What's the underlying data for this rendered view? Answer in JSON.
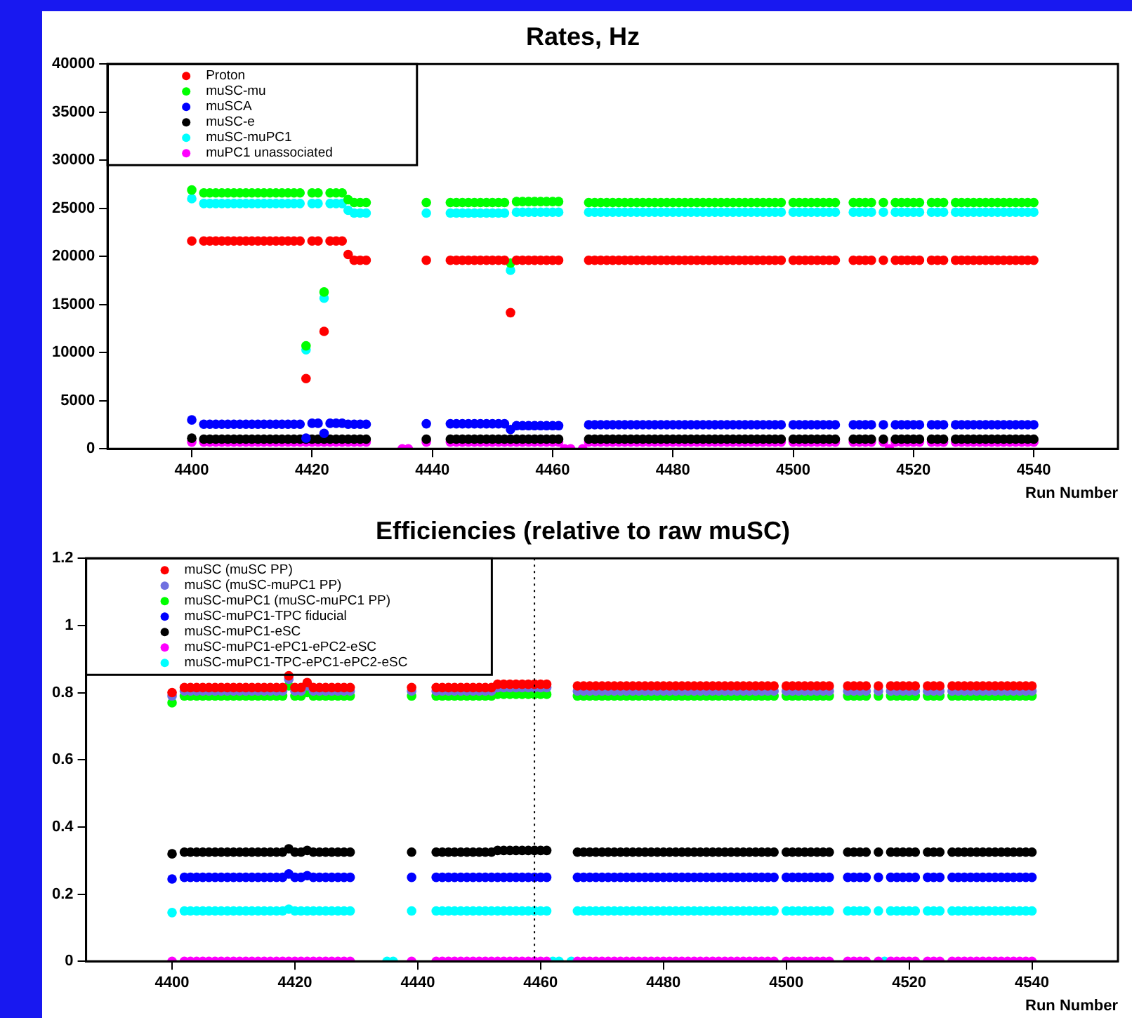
{
  "chart_data": [
    {
      "type": "scatter",
      "title": "Rates, Hz",
      "xlabel": "Run Number",
      "marker": "circle",
      "legend": "top left",
      "x": [
        4400,
        4402,
        4403,
        4404,
        4405,
        4406,
        4407,
        4408,
        4409,
        4410,
        4411,
        4412,
        4413,
        4414,
        4415,
        4416,
        4417,
        4418,
        4419,
        4420,
        4421,
        4422,
        4423,
        4424,
        4425,
        4426,
        4427,
        4428,
        4429,
        4435,
        4436,
        4439,
        4443,
        4444,
        4445,
        4446,
        4447,
        4448,
        4449,
        4450,
        4451,
        4452,
        4453,
        4454,
        4455,
        4456,
        4457,
        4458,
        4459,
        4460,
        4461,
        4462,
        4463,
        4465,
        4466,
        4467,
        4468,
        4469,
        4470,
        4471,
        4472,
        4473,
        4474,
        4475,
        4476,
        4477,
        4478,
        4479,
        4480,
        4481,
        4482,
        4483,
        4484,
        4485,
        4486,
        4487,
        4488,
        4489,
        4490,
        4491,
        4492,
        4493,
        4494,
        4495,
        4496,
        4497,
        4498,
        4500,
        4501,
        4502,
        4503,
        4504,
        4505,
        4506,
        4507,
        4510,
        4511,
        4512,
        4513,
        4515,
        4516,
        4517,
        4518,
        4519,
        4520,
        4521,
        4523,
        4524,
        4525,
        4527,
        4528,
        4529,
        4530,
        4531,
        4532,
        4533,
        4534,
        4535,
        4536,
        4537,
        4538,
        4539,
        4540
      ],
      "xlim": [
        4386,
        4554
      ],
      "xticks": [
        4400,
        4420,
        4440,
        4460,
        4480,
        4500,
        4520,
        4540
      ],
      "ylim": [
        0,
        40000
      ],
      "yticks": [
        0,
        5000,
        10000,
        15000,
        20000,
        25000,
        30000,
        35000,
        40000
      ],
      "series": [
        {
          "name": "Proton",
          "color": "#ff0000",
          "values": [
            21600,
            21600,
            21600,
            21600,
            21600,
            21600,
            21600,
            21600,
            21600,
            21600,
            21600,
            21600,
            21600,
            21600,
            21600,
            21600,
            21600,
            21600,
            7300,
            21600,
            21600,
            12200,
            21600,
            21600,
            21600,
            20200,
            19600,
            19600,
            19600,
            null,
            null,
            19600,
            19600,
            19600,
            19600,
            19600,
            19600,
            19600,
            19600,
            19600,
            19600,
            19600,
            14150,
            19600,
            19600,
            19600,
            19600,
            19600,
            19600,
            19600,
            19600,
            null,
            null,
            null,
            19600,
            19600,
            19600,
            19600,
            19600,
            19600,
            19600,
            19600,
            19600,
            19600,
            19600,
            19600,
            19600,
            19600,
            19600,
            19600,
            19600,
            19600,
            19600,
            19600,
            19600,
            19600,
            19600,
            19600,
            19600,
            19600,
            19600,
            19600,
            19600,
            19600,
            19600,
            19600,
            19600,
            19600,
            19600,
            19600,
            19600,
            19600,
            19600,
            19600,
            19600,
            19600,
            19600,
            19600,
            19600,
            19600,
            null,
            19600,
            19600,
            19600,
            19600,
            19600,
            19600,
            19600,
            19600,
            19600,
            19600,
            19600,
            19600,
            19600,
            19600,
            19600,
            19600,
            19600,
            19600,
            19600,
            19600,
            19600,
            19600
          ]
        },
        {
          "name": "muSC-mu",
          "color": "#00ff00",
          "values": [
            26900,
            26600,
            26600,
            26600,
            26600,
            26600,
            26600,
            26600,
            26600,
            26600,
            26600,
            26600,
            26600,
            26600,
            26600,
            26600,
            26600,
            26600,
            10700,
            26600,
            26600,
            16300,
            26600,
            26600,
            26600,
            25900,
            25600,
            25600,
            25600,
            null,
            null,
            25600,
            25600,
            25600,
            25600,
            25600,
            25600,
            25600,
            25600,
            25600,
            25600,
            25600,
            19300,
            25700,
            25700,
            25700,
            25700,
            25700,
            25700,
            25700,
            25700,
            null,
            null,
            null,
            25600,
            25600,
            25600,
            25600,
            25600,
            25600,
            25600,
            25600,
            25600,
            25600,
            25600,
            25600,
            25600,
            25600,
            25600,
            25600,
            25600,
            25600,
            25600,
            25600,
            25600,
            25600,
            25600,
            25600,
            25600,
            25600,
            25600,
            25600,
            25600,
            25600,
            25600,
            25600,
            25600,
            25600,
            25600,
            25600,
            25600,
            25600,
            25600,
            25600,
            25600,
            25600,
            25600,
            25600,
            25600,
            25600,
            null,
            25600,
            25600,
            25600,
            25600,
            25600,
            25600,
            25600,
            25600,
            25600,
            25600,
            25600,
            25600,
            25600,
            25600,
            25600,
            25600,
            25600,
            25600,
            25600,
            25600,
            25600,
            25600
          ]
        },
        {
          "name": "muSCA",
          "color": "#0000ff",
          "values": [
            3000,
            2550,
            2550,
            2550,
            2550,
            2550,
            2550,
            2550,
            2550,
            2550,
            2550,
            2550,
            2550,
            2550,
            2550,
            2550,
            2550,
            2550,
            1100,
            2650,
            2650,
            1600,
            2650,
            2650,
            2650,
            2550,
            2550,
            2550,
            2550,
            null,
            null,
            2600,
            2600,
            2600,
            2600,
            2600,
            2600,
            2600,
            2600,
            2600,
            2600,
            2600,
            2000,
            2400,
            2400,
            2400,
            2400,
            2400,
            2400,
            2400,
            2400,
            null,
            null,
            null,
            2500,
            2500,
            2500,
            2500,
            2500,
            2500,
            2500,
            2500,
            2500,
            2500,
            2500,
            2500,
            2500,
            2500,
            2500,
            2500,
            2500,
            2500,
            2500,
            2500,
            2500,
            2500,
            2500,
            2500,
            2500,
            2500,
            2500,
            2500,
            2500,
            2500,
            2500,
            2500,
            2500,
            2500,
            2500,
            2500,
            2500,
            2500,
            2500,
            2500,
            2500,
            2500,
            2500,
            2500,
            2500,
            2500,
            null,
            2500,
            2500,
            2500,
            2500,
            2500,
            2500,
            2500,
            2500,
            2500,
            2500,
            2500,
            2500,
            2500,
            2500,
            2500,
            2500,
            2500,
            2500,
            2500,
            2500,
            2500,
            2500
          ]
        },
        {
          "name": "muSC-e",
          "color": "#000000",
          "values": [
            1100,
            1000,
            1000,
            1000,
            1000,
            1000,
            1000,
            1000,
            1000,
            1000,
            1000,
            1000,
            1000,
            1000,
            1000,
            1000,
            1000,
            1000,
            1000,
            1000,
            1000,
            1000,
            1000,
            1000,
            1000,
            1000,
            1000,
            1000,
            1000,
            null,
            null,
            1000,
            1000,
            1000,
            1000,
            1000,
            1000,
            1000,
            1000,
            1000,
            1000,
            1000,
            1000,
            1000,
            1000,
            1000,
            1000,
            1000,
            1000,
            1000,
            1000,
            null,
            null,
            null,
            1000,
            1000,
            1000,
            1000,
            1000,
            1000,
            1000,
            1000,
            1000,
            1000,
            1000,
            1000,
            1000,
            1000,
            1000,
            1000,
            1000,
            1000,
            1000,
            1000,
            1000,
            1000,
            1000,
            1000,
            1000,
            1000,
            1000,
            1000,
            1000,
            1000,
            1000,
            1000,
            1000,
            1000,
            1000,
            1000,
            1000,
            1000,
            1000,
            1000,
            1000,
            1000,
            1000,
            1000,
            1000,
            1000,
            null,
            1000,
            1000,
            1000,
            1000,
            1000,
            1000,
            1000,
            1000,
            1000,
            1000,
            1000,
            1000,
            1000,
            1000,
            1000,
            1000,
            1000,
            1000,
            1000,
            1000,
            1000,
            1000
          ]
        },
        {
          "name": "muSC-muPC1",
          "color": "#00ffff",
          "values": [
            26000,
            25500,
            25500,
            25500,
            25500,
            25500,
            25500,
            25500,
            25500,
            25500,
            25500,
            25500,
            25500,
            25500,
            25500,
            25500,
            25500,
            25500,
            10300,
            25500,
            25500,
            15650,
            25500,
            25500,
            25500,
            24800,
            24500,
            24500,
            24500,
            null,
            null,
            24500,
            24500,
            24500,
            24500,
            24500,
            24500,
            24500,
            24500,
            24500,
            24500,
            24500,
            18550,
            24600,
            24600,
            24600,
            24600,
            24600,
            24600,
            24600,
            24600,
            null,
            null,
            null,
            24600,
            24600,
            24600,
            24600,
            24600,
            24600,
            24600,
            24600,
            24600,
            24600,
            24600,
            24600,
            24600,
            24600,
            24600,
            24600,
            24600,
            24600,
            24600,
            24600,
            24600,
            24600,
            24600,
            24600,
            24600,
            24600,
            24600,
            24600,
            24600,
            24600,
            24600,
            24600,
            24600,
            24600,
            24600,
            24600,
            24600,
            24600,
            24600,
            24600,
            24600,
            24600,
            24600,
            24600,
            24600,
            24600,
            null,
            24600,
            24600,
            24600,
            24600,
            24600,
            24600,
            24600,
            24600,
            24600,
            24600,
            24600,
            24600,
            24600,
            24600,
            24600,
            24600,
            24600,
            24600,
            24600,
            24600,
            24600,
            24600
          ]
        },
        {
          "name": "muPC1 unassociated",
          "color": "#ff00ff",
          "values": [
            700,
            700,
            700,
            700,
            700,
            700,
            700,
            700,
            700,
            700,
            700,
            700,
            700,
            700,
            700,
            700,
            700,
            700,
            700,
            700,
            700,
            700,
            700,
            700,
            700,
            700,
            700,
            700,
            700,
            0,
            0,
            700,
            700,
            700,
            700,
            700,
            700,
            700,
            700,
            700,
            700,
            700,
            700,
            700,
            700,
            700,
            700,
            700,
            700,
            700,
            700,
            0,
            0,
            0,
            700,
            700,
            700,
            700,
            700,
            700,
            700,
            700,
            700,
            700,
            700,
            700,
            700,
            700,
            700,
            700,
            700,
            700,
            700,
            700,
            700,
            700,
            700,
            700,
            700,
            700,
            700,
            700,
            700,
            700,
            700,
            700,
            700,
            700,
            700,
            700,
            700,
            700,
            700,
            700,
            700,
            700,
            700,
            700,
            700,
            700,
            0,
            700,
            700,
            700,
            700,
            700,
            700,
            700,
            700,
            700,
            700,
            700,
            700,
            700,
            700,
            700,
            700,
            700,
            700,
            700,
            700,
            700,
            700
          ]
        }
      ]
    },
    {
      "type": "scatter",
      "title": "Efficiencies (relative to raw muSC)",
      "xlabel": "Run Number",
      "marker": "circle",
      "legend": "top left",
      "x": [
        4400,
        4402,
        4403,
        4404,
        4405,
        4406,
        4407,
        4408,
        4409,
        4410,
        4411,
        4412,
        4413,
        4414,
        4415,
        4416,
        4417,
        4418,
        4419,
        4420,
        4421,
        4422,
        4423,
        4424,
        4425,
        4426,
        4427,
        4428,
        4429,
        4435,
        4436,
        4439,
        4443,
        4444,
        4445,
        4446,
        4447,
        4448,
        4449,
        4450,
        4451,
        4452,
        4453,
        4454,
        4455,
        4456,
        4457,
        4458,
        4459,
        4460,
        4461,
        4462,
        4463,
        4465,
        4466,
        4467,
        4468,
        4469,
        4470,
        4471,
        4472,
        4473,
        4474,
        4475,
        4476,
        4477,
        4478,
        4479,
        4480,
        4481,
        4482,
        4483,
        4484,
        4485,
        4486,
        4487,
        4488,
        4489,
        4490,
        4491,
        4492,
        4493,
        4494,
        4495,
        4496,
        4497,
        4498,
        4500,
        4501,
        4502,
        4503,
        4504,
        4505,
        4506,
        4507,
        4510,
        4511,
        4512,
        4513,
        4515,
        4516,
        4517,
        4518,
        4519,
        4520,
        4521,
        4523,
        4524,
        4525,
        4527,
        4528,
        4529,
        4530,
        4531,
        4532,
        4533,
        4534,
        4535,
        4536,
        4537,
        4538,
        4539,
        4540
      ],
      "xlim": [
        4386,
        4554
      ],
      "xticks": [
        4400,
        4420,
        4440,
        4460,
        4480,
        4500,
        4520,
        4540
      ],
      "ylim": [
        0,
        1.2
      ],
      "yticks": [
        0,
        0.2,
        0.4,
        0.6,
        0.8,
        1,
        1.2
      ],
      "ref_lines": [
        {
          "axis": "x",
          "value": 4459,
          "line_style": "dotted"
        }
      ],
      "series": [
        {
          "name": "muSC (muSC PP)",
          "color": "#ff0000",
          "values": [
            0.8,
            0.815,
            0.815,
            0.815,
            0.815,
            0.815,
            0.815,
            0.815,
            0.815,
            0.815,
            0.815,
            0.815,
            0.815,
            0.815,
            0.815,
            0.815,
            0.815,
            0.815,
            0.85,
            0.815,
            0.815,
            0.83,
            0.815,
            0.815,
            0.815,
            0.815,
            0.815,
            0.815,
            0.815,
            null,
            null,
            0.815,
            0.815,
            0.815,
            0.815,
            0.815,
            0.815,
            0.815,
            0.815,
            0.815,
            0.815,
            0.815,
            0.825,
            0.825,
            0.825,
            0.825,
            0.825,
            0.825,
            0.825,
            0.825,
            0.825,
            null,
            null,
            null,
            0.82,
            0.82,
            0.82,
            0.82,
            0.82,
            0.82,
            0.82,
            0.82,
            0.82,
            0.82,
            0.82,
            0.82,
            0.82,
            0.82,
            0.82,
            0.82,
            0.82,
            0.82,
            0.82,
            0.82,
            0.82,
            0.82,
            0.82,
            0.82,
            0.82,
            0.82,
            0.82,
            0.82,
            0.82,
            0.82,
            0.82,
            0.82,
            0.82,
            0.82,
            0.82,
            0.82,
            0.82,
            0.82,
            0.82,
            0.82,
            0.82,
            0.82,
            0.82,
            0.82,
            0.82,
            0.82,
            null,
            0.82,
            0.82,
            0.82,
            0.82,
            0.82,
            0.82,
            0.82,
            0.82,
            0.82,
            0.82,
            0.82,
            0.82,
            0.82,
            0.82,
            0.82,
            0.82,
            0.82,
            0.82,
            0.82,
            0.82,
            0.82,
            0.82
          ]
        },
        {
          "name": "muSC (muSC-muPC1 PP)",
          "color": "#7070e0",
          "values": [
            0.79,
            0.805,
            0.805,
            0.805,
            0.805,
            0.805,
            0.805,
            0.805,
            0.805,
            0.805,
            0.805,
            0.805,
            0.805,
            0.805,
            0.805,
            0.805,
            0.805,
            0.805,
            0.84,
            0.805,
            0.805,
            0.82,
            0.805,
            0.805,
            0.805,
            0.805,
            0.805,
            0.805,
            0.805,
            null,
            null,
            0.805,
            0.805,
            0.805,
            0.805,
            0.805,
            0.805,
            0.805,
            0.805,
            0.805,
            0.805,
            0.805,
            0.815,
            0.815,
            0.815,
            0.815,
            0.815,
            0.815,
            0.815,
            0.815,
            0.815,
            null,
            null,
            null,
            0.805,
            0.805,
            0.805,
            0.805,
            0.805,
            0.805,
            0.805,
            0.805,
            0.805,
            0.805,
            0.805,
            0.805,
            0.805,
            0.805,
            0.805,
            0.805,
            0.805,
            0.805,
            0.805,
            0.805,
            0.805,
            0.805,
            0.805,
            0.805,
            0.805,
            0.805,
            0.805,
            0.805,
            0.805,
            0.805,
            0.805,
            0.805,
            0.805,
            0.805,
            0.805,
            0.805,
            0.805,
            0.805,
            0.805,
            0.805,
            0.805,
            0.805,
            0.805,
            0.805,
            0.805,
            0.805,
            null,
            0.805,
            0.805,
            0.805,
            0.805,
            0.805,
            0.805,
            0.805,
            0.805,
            0.805,
            0.805,
            0.805,
            0.805,
            0.805,
            0.805,
            0.805,
            0.805,
            0.805,
            0.805,
            0.805,
            0.805,
            0.805,
            0.805
          ]
        },
        {
          "name": "muSC-muPC1 (muSC-muPC1 PP)",
          "color": "#00ff00",
          "values": [
            0.77,
            0.79,
            0.79,
            0.79,
            0.79,
            0.79,
            0.79,
            0.79,
            0.79,
            0.79,
            0.79,
            0.79,
            0.79,
            0.79,
            0.79,
            0.79,
            0.79,
            0.79,
            0.82,
            0.79,
            0.79,
            0.8,
            0.79,
            0.79,
            0.79,
            0.79,
            0.79,
            0.79,
            0.79,
            null,
            null,
            0.79,
            0.79,
            0.79,
            0.79,
            0.79,
            0.79,
            0.79,
            0.79,
            0.79,
            0.79,
            0.79,
            0.795,
            0.795,
            0.795,
            0.795,
            0.795,
            0.795,
            0.795,
            0.795,
            0.795,
            null,
            null,
            null,
            0.79,
            0.79,
            0.79,
            0.79,
            0.79,
            0.79,
            0.79,
            0.79,
            0.79,
            0.79,
            0.79,
            0.79,
            0.79,
            0.79,
            0.79,
            0.79,
            0.79,
            0.79,
            0.79,
            0.79,
            0.79,
            0.79,
            0.79,
            0.79,
            0.79,
            0.79,
            0.79,
            0.79,
            0.79,
            0.79,
            0.79,
            0.79,
            0.79,
            0.79,
            0.79,
            0.79,
            0.79,
            0.79,
            0.79,
            0.79,
            0.79,
            0.79,
            0.79,
            0.79,
            0.79,
            0.79,
            null,
            0.79,
            0.79,
            0.79,
            0.79,
            0.79,
            0.79,
            0.79,
            0.79,
            0.79,
            0.79,
            0.79,
            0.79,
            0.79,
            0.79,
            0.79,
            0.79,
            0.79,
            0.79,
            0.79,
            0.79,
            0.79,
            0.79
          ]
        },
        {
          "name": "muSC-muPC1-TPC fiducial",
          "color": "#0000ff",
          "values": [
            0.245,
            0.25,
            0.25,
            0.25,
            0.25,
            0.25,
            0.25,
            0.25,
            0.25,
            0.25,
            0.25,
            0.25,
            0.25,
            0.25,
            0.25,
            0.25,
            0.25,
            0.25,
            0.26,
            0.25,
            0.25,
            0.255,
            0.25,
            0.25,
            0.25,
            0.25,
            0.25,
            0.25,
            0.25,
            null,
            null,
            0.25,
            0.25,
            0.25,
            0.25,
            0.25,
            0.25,
            0.25,
            0.25,
            0.25,
            0.25,
            0.25,
            0.25,
            0.25,
            0.25,
            0.25,
            0.25,
            0.25,
            0.25,
            0.25,
            0.25,
            null,
            null,
            null,
            0.25,
            0.25,
            0.25,
            0.25,
            0.25,
            0.25,
            0.25,
            0.25,
            0.25,
            0.25,
            0.25,
            0.25,
            0.25,
            0.25,
            0.25,
            0.25,
            0.25,
            0.25,
            0.25,
            0.25,
            0.25,
            0.25,
            0.25,
            0.25,
            0.25,
            0.25,
            0.25,
            0.25,
            0.25,
            0.25,
            0.25,
            0.25,
            0.25,
            0.25,
            0.25,
            0.25,
            0.25,
            0.25,
            0.25,
            0.25,
            0.25,
            0.25,
            0.25,
            0.25,
            0.25,
            0.25,
            null,
            0.25,
            0.25,
            0.25,
            0.25,
            0.25,
            0.25,
            0.25,
            0.25,
            0.25,
            0.25,
            0.25,
            0.25,
            0.25,
            0.25,
            0.25,
            0.25,
            0.25,
            0.25,
            0.25,
            0.25,
            0.25,
            0.25
          ]
        },
        {
          "name": "muSC-muPC1-eSC",
          "color": "#000000",
          "values": [
            0.32,
            0.325,
            0.325,
            0.325,
            0.325,
            0.325,
            0.325,
            0.325,
            0.325,
            0.325,
            0.325,
            0.325,
            0.325,
            0.325,
            0.325,
            0.325,
            0.325,
            0.325,
            0.335,
            0.325,
            0.325,
            0.33,
            0.325,
            0.325,
            0.325,
            0.325,
            0.325,
            0.325,
            0.325,
            null,
            null,
            0.325,
            0.325,
            0.325,
            0.325,
            0.325,
            0.325,
            0.325,
            0.325,
            0.325,
            0.325,
            0.325,
            0.33,
            0.33,
            0.33,
            0.33,
            0.33,
            0.33,
            0.33,
            0.33,
            0.33,
            null,
            null,
            null,
            0.325,
            0.325,
            0.325,
            0.325,
            0.325,
            0.325,
            0.325,
            0.325,
            0.325,
            0.325,
            0.325,
            0.325,
            0.325,
            0.325,
            0.325,
            0.325,
            0.325,
            0.325,
            0.325,
            0.325,
            0.325,
            0.325,
            0.325,
            0.325,
            0.325,
            0.325,
            0.325,
            0.325,
            0.325,
            0.325,
            0.325,
            0.325,
            0.325,
            0.325,
            0.325,
            0.325,
            0.325,
            0.325,
            0.325,
            0.325,
            0.325,
            0.325,
            0.325,
            0.325,
            0.325,
            0.325,
            null,
            0.325,
            0.325,
            0.325,
            0.325,
            0.325,
            0.325,
            0.325,
            0.325,
            0.325,
            0.325,
            0.325,
            0.325,
            0.325,
            0.325,
            0.325,
            0.325,
            0.325,
            0.325,
            0.325,
            0.325,
            0.325,
            0.325
          ]
        },
        {
          "name": "muSC-muPC1-ePC1-ePC2-eSC",
          "color": "#ff00ff",
          "values": [
            0,
            0,
            0,
            0,
            0,
            0,
            0,
            0,
            0,
            0,
            0,
            0,
            0,
            0,
            0,
            0,
            0,
            0,
            0,
            0,
            0,
            0,
            0,
            0,
            0,
            0,
            0,
            0,
            0,
            null,
            null,
            0,
            0,
            0,
            0,
            0,
            0,
            0,
            0,
            0,
            0,
            0,
            0,
            0,
            0,
            0,
            0,
            0,
            0,
            0,
            0,
            null,
            null,
            null,
            0,
            0,
            0,
            0,
            0,
            0,
            0,
            0,
            0,
            0,
            0,
            0,
            0,
            0,
            0,
            0,
            0,
            0,
            0,
            0,
            0,
            0,
            0,
            0,
            0,
            0,
            0,
            0,
            0,
            0,
            0,
            0,
            0,
            0,
            0,
            0,
            0,
            0,
            0,
            0,
            0,
            0,
            0,
            0,
            0,
            0,
            null,
            0,
            0,
            0,
            0,
            0,
            0,
            0,
            0,
            0,
            0,
            0,
            0,
            0,
            0,
            0,
            0,
            0,
            0,
            0,
            0,
            0,
            0
          ]
        },
        {
          "name": "muSC-muPC1-TPC-ePC1-ePC2-eSC",
          "color": "#00ffff",
          "values": [
            0.145,
            0.15,
            0.15,
            0.15,
            0.15,
            0.15,
            0.15,
            0.15,
            0.15,
            0.15,
            0.15,
            0.15,
            0.15,
            0.15,
            0.15,
            0.15,
            0.15,
            0.15,
            0.155,
            0.15,
            0.15,
            0.15,
            0.15,
            0.15,
            0.15,
            0.15,
            0.15,
            0.15,
            0.15,
            0,
            0,
            0.15,
            0.15,
            0.15,
            0.15,
            0.15,
            0.15,
            0.15,
            0.15,
            0.15,
            0.15,
            0.15,
            0.15,
            0.15,
            0.15,
            0.15,
            0.15,
            0.15,
            0.15,
            0.15,
            0.15,
            0,
            0,
            0,
            0.15,
            0.15,
            0.15,
            0.15,
            0.15,
            0.15,
            0.15,
            0.15,
            0.15,
            0.15,
            0.15,
            0.15,
            0.15,
            0.15,
            0.15,
            0.15,
            0.15,
            0.15,
            0.15,
            0.15,
            0.15,
            0.15,
            0.15,
            0.15,
            0.15,
            0.15,
            0.15,
            0.15,
            0.15,
            0.15,
            0.15,
            0.15,
            0.15,
            0.15,
            0.15,
            0.15,
            0.15,
            0.15,
            0.15,
            0.15,
            0.15,
            0.15,
            0.15,
            0.15,
            0.15,
            0.15,
            0,
            0.15,
            0.15,
            0.15,
            0.15,
            0.15,
            0.15,
            0.15,
            0.15,
            0.15,
            0.15,
            0.15,
            0.15,
            0.15,
            0.15,
            0.15,
            0.15,
            0.15,
            0.15,
            0.15,
            0.15,
            0.15,
            0.15
          ]
        }
      ]
    }
  ]
}
